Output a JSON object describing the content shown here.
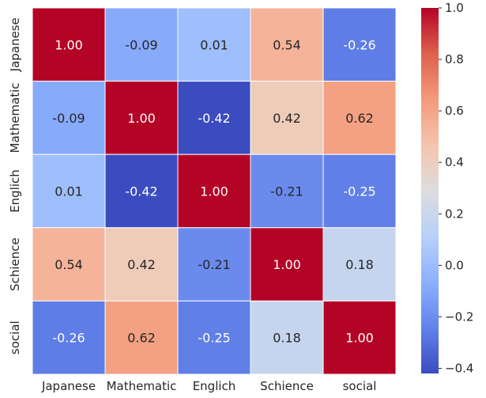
{
  "chart_data": {
    "type": "heatmap",
    "title": "",
    "xlabel": "",
    "ylabel": "",
    "x_labels": [
      "Japanese",
      "Mathematic",
      "Englich",
      "Schience",
      "social"
    ],
    "y_labels": [
      "Japanese",
      "Mathematic",
      "Englich",
      "Schience",
      "social"
    ],
    "values": [
      [
        1.0,
        -0.09,
        0.01,
        0.54,
        -0.26
      ],
      [
        -0.09,
        1.0,
        -0.42,
        0.42,
        0.62
      ],
      [
        0.01,
        -0.42,
        1.0,
        -0.21,
        -0.25
      ],
      [
        0.54,
        0.42,
        -0.21,
        1.0,
        0.18
      ],
      [
        -0.26,
        0.62,
        -0.25,
        0.18,
        1.0
      ]
    ],
    "value_format": "0.00",
    "colormap": "coolwarm",
    "color_range": [
      -0.42,
      1.0
    ],
    "colorbar": {
      "ticks": [
        -0.4,
        -0.2,
        0.0,
        0.2,
        0.4,
        0.6,
        0.8,
        1.0
      ],
      "tick_labels": [
        "−0.4",
        "−0.2",
        "0.0",
        "0.2",
        "0.4",
        "0.6",
        "0.8",
        "1.0"
      ],
      "placement": "right"
    },
    "grid": true
  }
}
